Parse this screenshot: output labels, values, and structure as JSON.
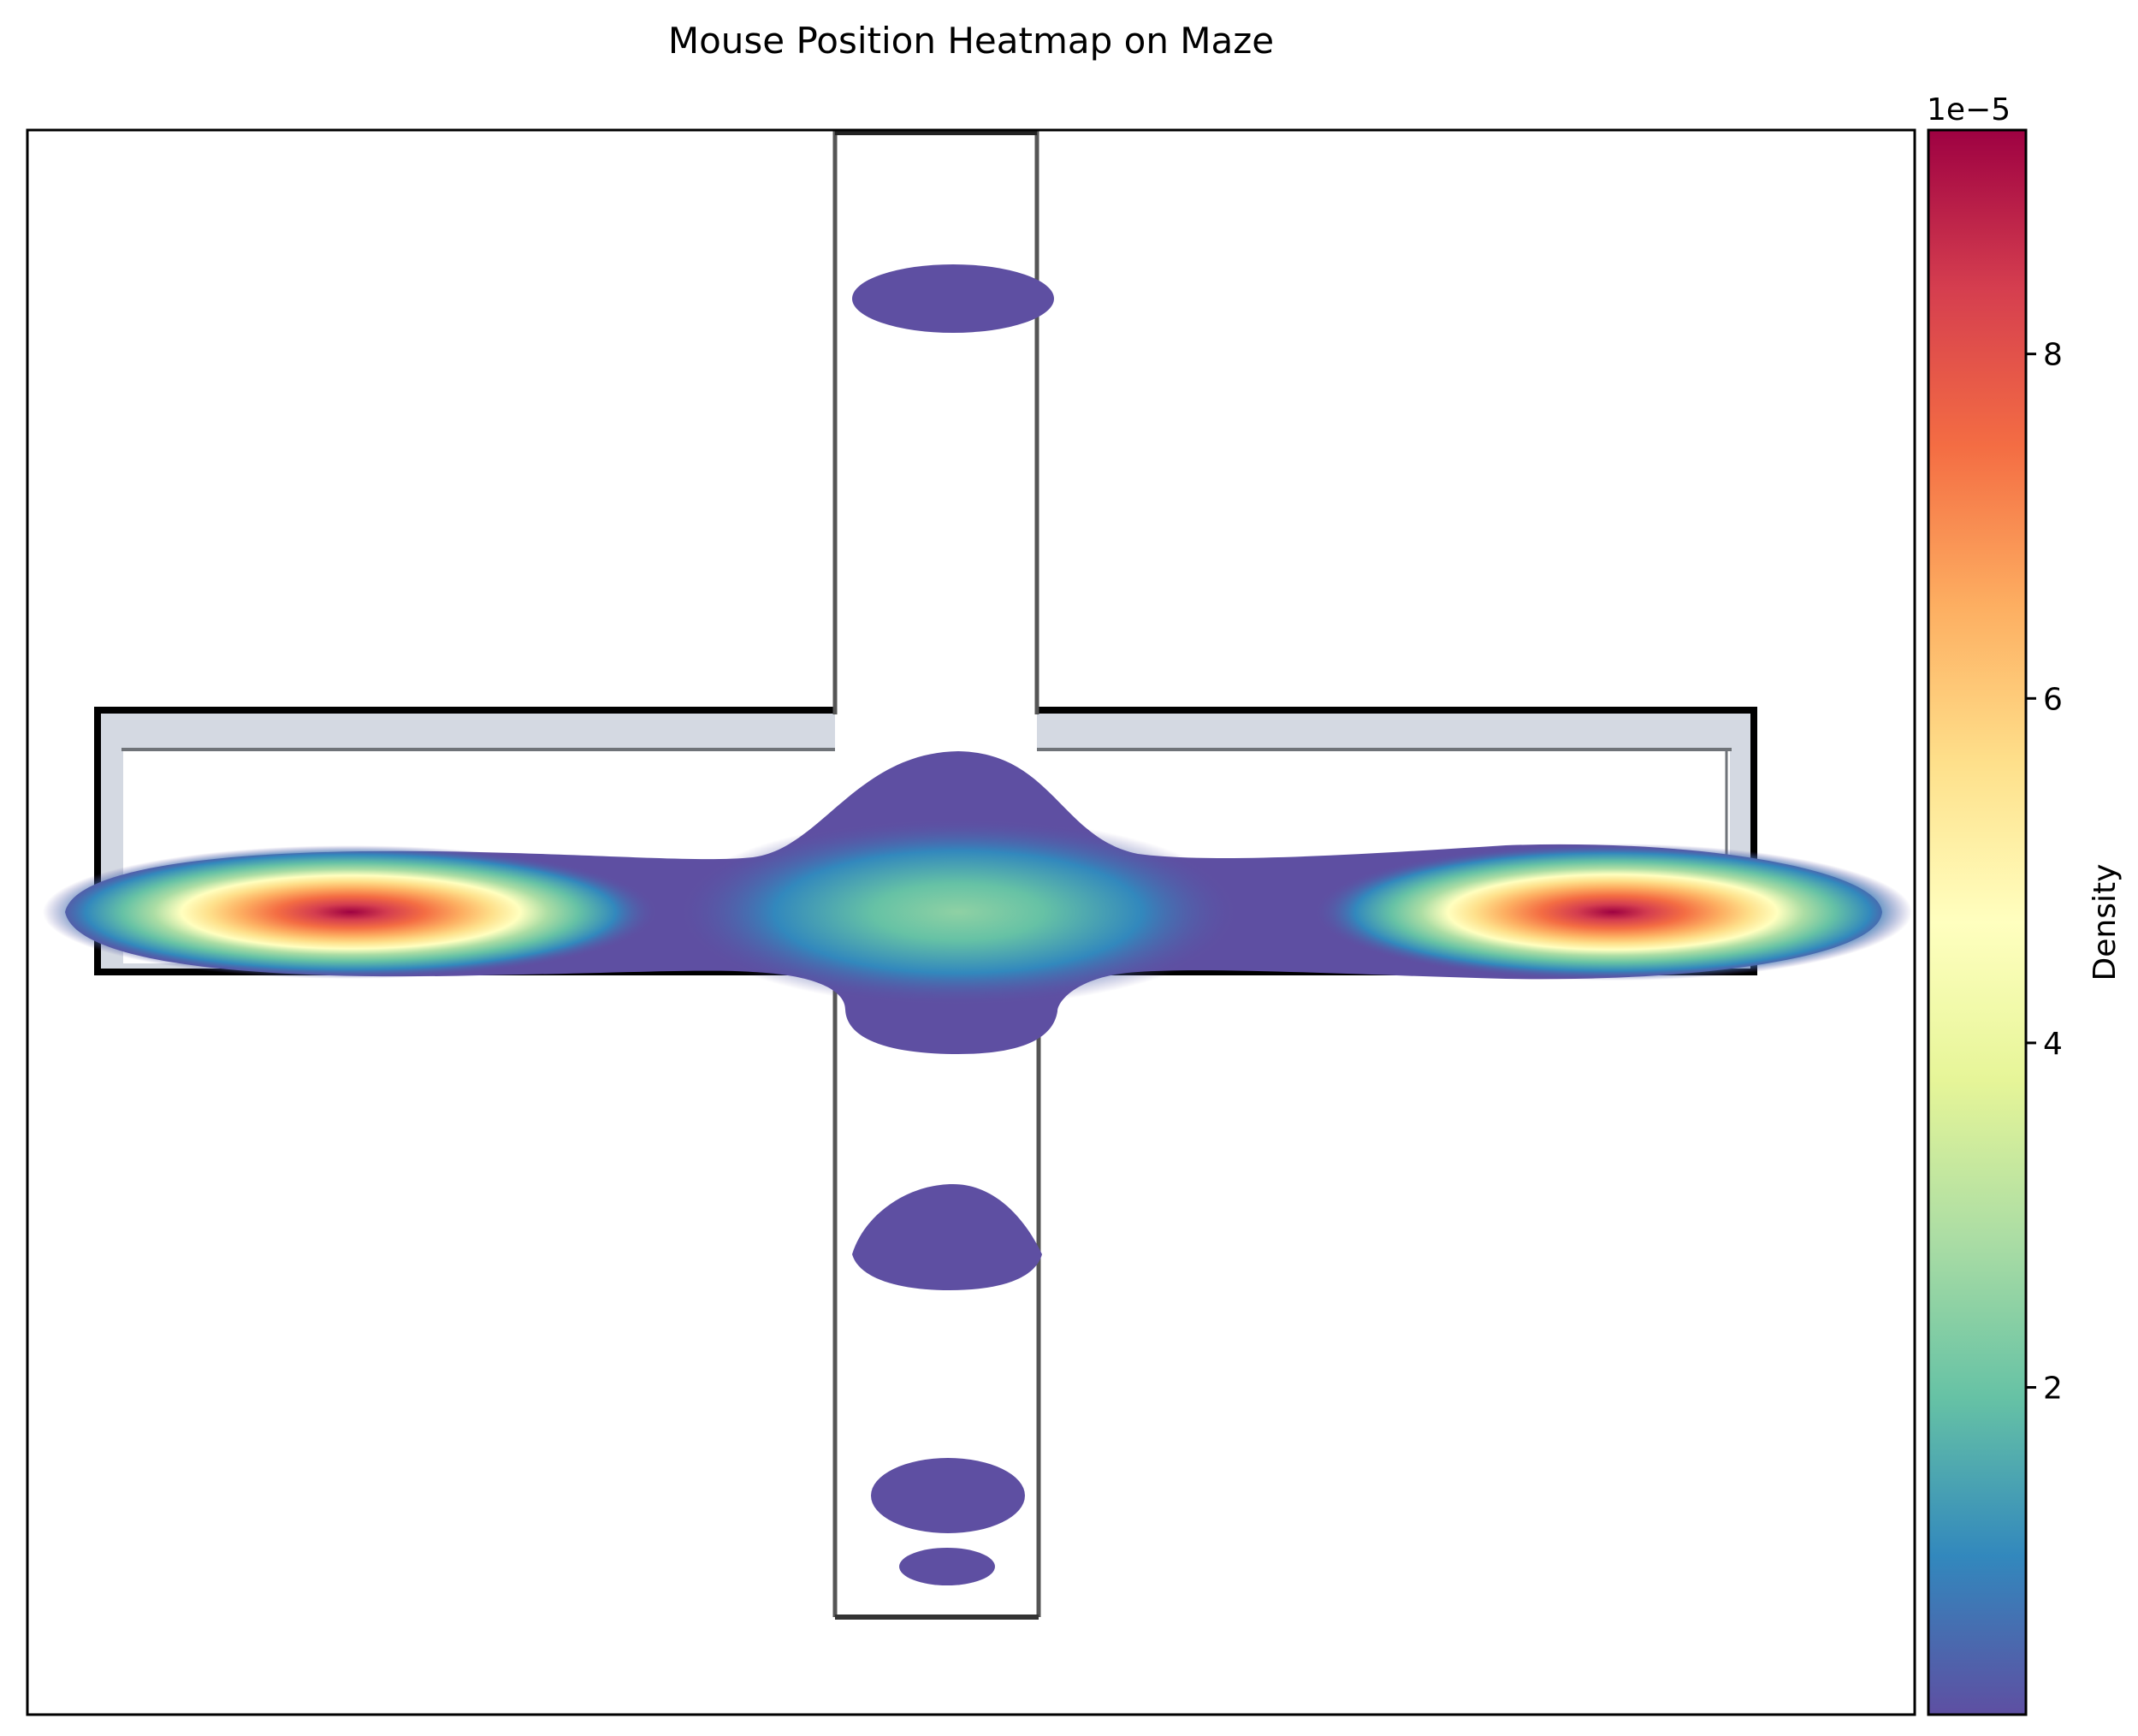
{
  "chart_data": {
    "type": "heatmap",
    "title": "Mouse Position Heatmap on Maze",
    "xlabel": "",
    "ylabel": "",
    "axes_ticks_visible": false,
    "background": "plus-shaped maze image (vertical corridor crossing a horizontal rectangular track)",
    "colormap": "Spectral_r",
    "colorbar": {
      "label": "Density",
      "offset_text": "1e−5",
      "range": [
        0.1,
        9.3
      ],
      "tick_values": [
        2,
        4,
        6,
        8
      ],
      "tick_labels": [
        "2",
        "4",
        "6",
        "8"
      ]
    },
    "density_regions": [
      {
        "name": "left arm hotspot",
        "peak_density_e5": 9.0
      },
      {
        "name": "right arm hotspot",
        "peak_density_e5": 9.3
      },
      {
        "name": "center junction",
        "peak_density_e5": 2.5
      },
      {
        "name": "top arm blob",
        "peak_density_e5": 0.4
      },
      {
        "name": "lower arm blob 1",
        "peak_density_e5": 0.4
      },
      {
        "name": "lower arm blob 2",
        "peak_density_e5": 0.3
      },
      {
        "name": "lower arm blob 3",
        "peak_density_e5": 0.2
      }
    ],
    "colors": {
      "c0": "#5e4fa2",
      "c1": "#3288bd",
      "c2": "#66c2a5",
      "c3": "#abdda4",
      "c4": "#e6f598",
      "c5": "#ffffbf",
      "c6": "#fee08b",
      "c7": "#fdae61",
      "c8": "#f46d43",
      "c9": "#d53e4f",
      "c10": "#9e0142"
    }
  }
}
